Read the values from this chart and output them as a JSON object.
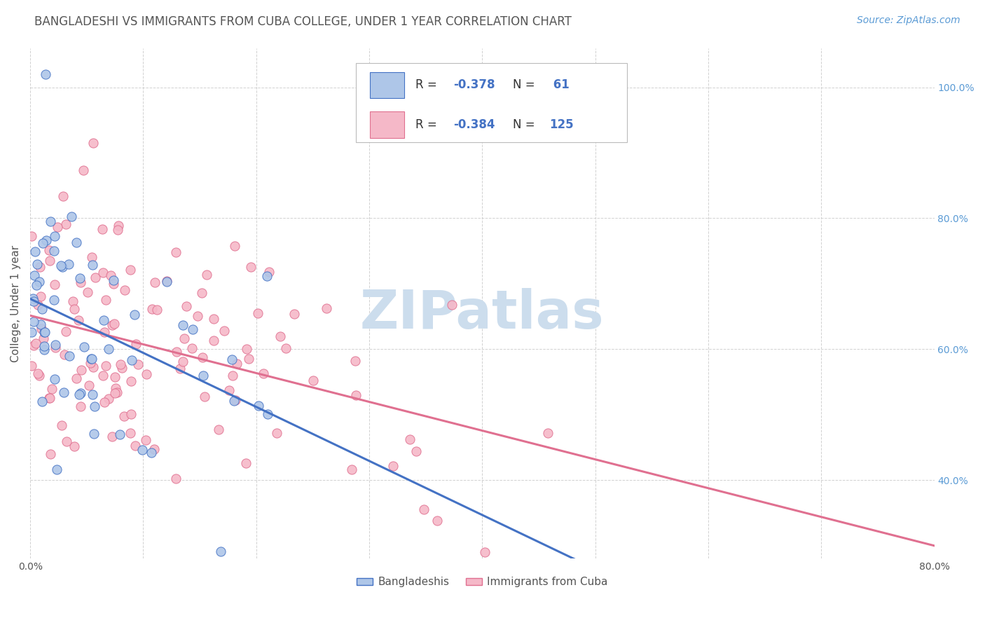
{
  "title": "BANGLADESHI VS IMMIGRANTS FROM CUBA COLLEGE, UNDER 1 YEAR CORRELATION CHART",
  "source": "Source: ZipAtlas.com",
  "ylabel": "College, Under 1 year",
  "legend_blue_label": "Bangladeshis",
  "legend_pink_label": "Immigrants from Cuba",
  "blue_fill": "#aec6e8",
  "pink_fill": "#f5b8c8",
  "blue_edge": "#4472c4",
  "pink_edge": "#e07090",
  "blue_line_color": "#4472c4",
  "pink_line_color": "#e07090",
  "legend_text_color": "#4472c4",
  "watermark_color": "#ccdded",
  "bg_color": "#ffffff",
  "grid_color": "#cccccc",
  "title_color": "#555555",
  "source_color": "#5b9bd5",
  "axis_tick_color": "#555555",
  "right_tick_color": "#5b9bd5",
  "xmin": 0.0,
  "xmax": 0.8,
  "ymin": 0.28,
  "ymax": 1.06,
  "blue_n": 61,
  "pink_n": 125,
  "blue_seed": 42,
  "pink_seed": 7,
  "title_fontsize": 12,
  "source_fontsize": 10,
  "legend_fontsize": 12,
  "watermark_fontsize": 55,
  "axis_label_fontsize": 11,
  "tick_fontsize": 10
}
